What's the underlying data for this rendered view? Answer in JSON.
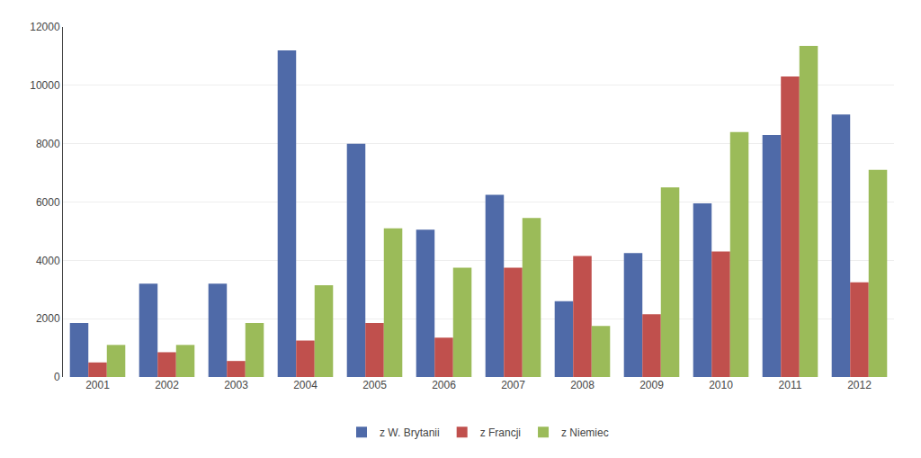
{
  "chart_data": {
    "type": "bar",
    "categories": [
      "2001",
      "2002",
      "2003",
      "2004",
      "2005",
      "2006",
      "2007",
      "2008",
      "2009",
      "2010",
      "2011",
      "2012"
    ],
    "series": [
      {
        "name": "z W. Brytanii",
        "color": "#4F6AA8",
        "values": [
          1850,
          3200,
          3200,
          11200,
          8000,
          5050,
          6250,
          2600,
          4250,
          5950,
          8300,
          9000
        ]
      },
      {
        "name": "z Francji",
        "color": "#C0504D",
        "values": [
          500,
          850,
          550,
          1250,
          1850,
          1350,
          3750,
          4150,
          2150,
          4300,
          10300,
          3250
        ]
      },
      {
        "name": "z Niemiec",
        "color": "#9BBB59",
        "values": [
          1100,
          1100,
          1850,
          3150,
          5100,
          3750,
          5450,
          1750,
          6500,
          8400,
          11350,
          7100
        ]
      }
    ],
    "ylim": [
      0,
      12000
    ],
    "yticks": [
      0,
      2000,
      4000,
      6000,
      8000,
      10000,
      12000
    ],
    "grid": true,
    "legend": "bottom"
  }
}
